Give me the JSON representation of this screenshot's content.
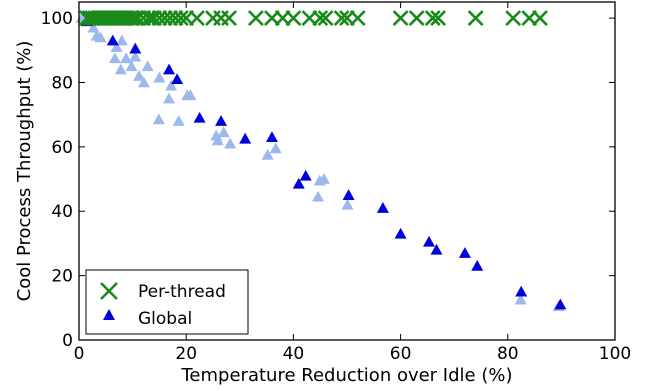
{
  "chart_data": {
    "type": "scatter",
    "xlabel": "Temperature Reduction over Idle (%)",
    "ylabel": "Cool Process Throughput (%)",
    "xlim": [
      0,
      100
    ],
    "ylim": [
      0,
      105
    ],
    "xticks": [
      0,
      20,
      40,
      60,
      80,
      100
    ],
    "yticks": [
      0,
      20,
      40,
      60,
      80,
      100
    ],
    "xtick_labels": [
      "0",
      "20",
      "40",
      "60",
      "80",
      "100"
    ],
    "ytick_labels": [
      "0",
      "20",
      "40",
      "60",
      "80",
      "100"
    ],
    "grid": false,
    "legend_position": "lower-left",
    "series": [
      {
        "name": "Per-thread",
        "marker": "x",
        "color": "#1a8a1a",
        "points": [
          [
            1.5,
            100
          ],
          [
            2,
            100
          ],
          [
            2.5,
            100
          ],
          [
            3,
            100
          ],
          [
            3.5,
            100
          ],
          [
            4,
            100
          ],
          [
            4.5,
            100
          ],
          [
            5,
            100
          ],
          [
            5.5,
            100
          ],
          [
            6,
            100
          ],
          [
            6.5,
            100
          ],
          [
            7,
            100
          ],
          [
            7.5,
            100
          ],
          [
            8,
            100
          ],
          [
            8.5,
            100
          ],
          [
            9,
            100
          ],
          [
            9.5,
            100
          ],
          [
            10,
            100
          ],
          [
            10.5,
            100
          ],
          [
            11,
            100
          ],
          [
            12,
            100
          ],
          [
            13,
            100
          ],
          [
            13.5,
            100
          ],
          [
            14,
            100
          ],
          [
            15,
            100
          ],
          [
            16,
            100
          ],
          [
            17,
            100
          ],
          [
            18,
            100
          ],
          [
            19,
            100
          ],
          [
            20,
            100
          ],
          [
            22,
            100
          ],
          [
            25,
            100
          ],
          [
            26.5,
            100
          ],
          [
            28,
            100
          ],
          [
            33,
            100
          ],
          [
            36,
            100
          ],
          [
            38,
            100
          ],
          [
            40,
            100
          ],
          [
            43,
            100
          ],
          [
            45,
            100
          ],
          [
            46,
            100
          ],
          [
            49,
            100
          ],
          [
            50,
            100
          ],
          [
            52,
            100
          ],
          [
            60,
            100
          ],
          [
            63,
            100
          ],
          [
            66,
            100
          ],
          [
            67,
            100
          ],
          [
            74,
            100
          ],
          [
            81,
            100
          ],
          [
            84,
            100
          ],
          [
            86,
            100
          ]
        ]
      },
      {
        "name": "Global",
        "marker": "triangle",
        "color": "#0000dd",
        "points": [
          [
            1.5,
            99
          ],
          [
            6.3,
            93
          ],
          [
            10.5,
            90.5
          ],
          [
            16.8,
            84
          ],
          [
            18.3,
            81
          ],
          [
            22.5,
            69
          ],
          [
            26.5,
            68
          ],
          [
            31,
            62.5
          ],
          [
            36,
            63
          ],
          [
            41,
            48.5
          ],
          [
            42.3,
            51
          ],
          [
            50.3,
            45
          ],
          [
            56.7,
            41
          ],
          [
            60,
            33
          ],
          [
            65.3,
            30.5
          ],
          [
            66.7,
            28
          ],
          [
            72,
            27
          ],
          [
            74.3,
            23
          ],
          [
            82.5,
            15
          ],
          [
            89.8,
            11
          ]
        ]
      },
      {
        "name": "",
        "marker": "triangle",
        "color": "#9db8ec",
        "points": [
          [
            0.5,
            100
          ],
          [
            2.7,
            97
          ],
          [
            3.3,
            94.5
          ],
          [
            4,
            94
          ],
          [
            6.7,
            87.5
          ],
          [
            7,
            91
          ],
          [
            7.8,
            84
          ],
          [
            8,
            93
          ],
          [
            8.8,
            87.5
          ],
          [
            9.8,
            85
          ],
          [
            10.5,
            88
          ],
          [
            11.2,
            82
          ],
          [
            12.1,
            80
          ],
          [
            12.8,
            85
          ],
          [
            14.9,
            68.5
          ],
          [
            15,
            81.5
          ],
          [
            16.8,
            75
          ],
          [
            17.2,
            79
          ],
          [
            18.6,
            68
          ],
          [
            20.2,
            76
          ],
          [
            20.8,
            76
          ],
          [
            25.6,
            63.5
          ],
          [
            25.9,
            62
          ],
          [
            27,
            64.5
          ],
          [
            28.2,
            61
          ],
          [
            35.2,
            57.5
          ],
          [
            36.7,
            59.5
          ],
          [
            44.6,
            44.5
          ],
          [
            44.9,
            49.5
          ],
          [
            45.7,
            50
          ],
          [
            50.1,
            42
          ],
          [
            82.4,
            12.5
          ],
          [
            89.5,
            10.5
          ]
        ]
      }
    ]
  }
}
